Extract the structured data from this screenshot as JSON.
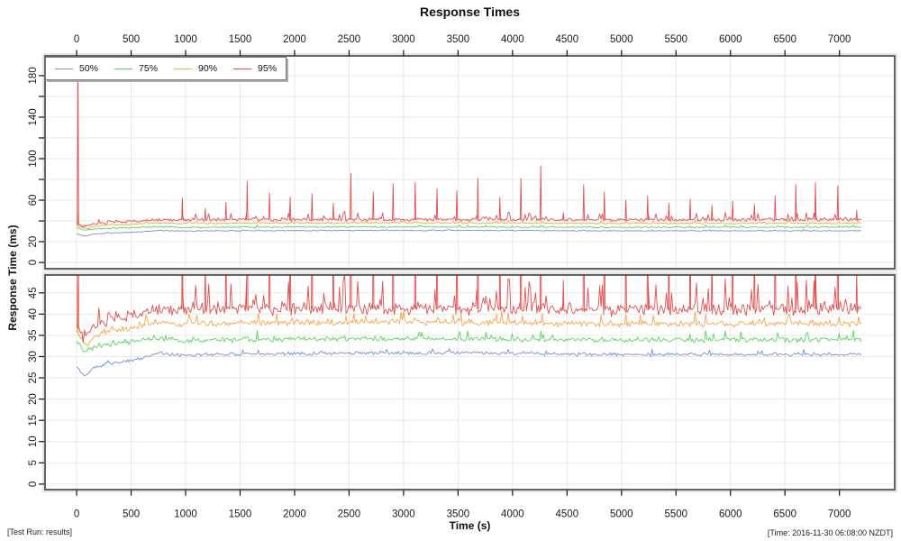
{
  "chart_data": {
    "type": "line",
    "title": "Response Times",
    "xlabel": "Time (s)",
    "ylabel": "Response Time (ms)",
    "footer_left": "[Test Run: results]",
    "footer_right": "[Time: 2016-11-30 06:08:00 NZDT]",
    "legend_position": "top-left",
    "grid": true,
    "x_ticks": [
      0,
      500,
      1000,
      1500,
      2000,
      2500,
      3000,
      3500,
      4000,
      4500,
      5000,
      5500,
      6000,
      6500,
      7000
    ],
    "x_data_range": [
      0,
      7200
    ],
    "xlim": [
      -290,
      7507
    ],
    "panels": [
      {
        "name": "full-range",
        "ylim": [
          -6,
          199
        ],
        "ytick_step": 20,
        "ytick_max": 180,
        "ylabels": [
          0,
          20,
          60,
          100,
          140,
          180
        ]
      },
      {
        "name": "zoomed",
        "ylim": [
          -1.3,
          49.2
        ],
        "ytick_step": 5,
        "ytick_max": 45,
        "ylabels": [
          0,
          5,
          10,
          15,
          20,
          25,
          30,
          35,
          40,
          45
        ]
      }
    ],
    "series": [
      {
        "name": "50%",
        "color": "#7b8cd8",
        "noise": 0.6,
        "seed": 11,
        "burst": [
          0.05,
          1.2
        ],
        "keypoints": [
          [
            0,
            27.6
          ],
          [
            70,
            25.4
          ],
          [
            150,
            27.2
          ],
          [
            300,
            28.4
          ],
          [
            450,
            28.9
          ],
          [
            600,
            29.6
          ],
          [
            760,
            31.0
          ],
          [
            900,
            30.3
          ],
          [
            1100,
            30.5
          ],
          [
            2400,
            30.8
          ],
          [
            3600,
            30.9
          ],
          [
            4800,
            30.5
          ],
          [
            7200,
            30.5
          ]
        ]
      },
      {
        "name": "75%",
        "color": "#55d65a",
        "noise": 0.9,
        "seed": 22,
        "burst": [
          0.07,
          1.8
        ],
        "keypoints": [
          [
            0,
            33.8
          ],
          [
            75,
            31.3
          ],
          [
            180,
            32.6
          ],
          [
            350,
            33.1
          ],
          [
            550,
            33.6
          ],
          [
            740,
            34.5
          ],
          [
            950,
            33.7
          ],
          [
            1500,
            34.0
          ],
          [
            3000,
            34.2
          ],
          [
            4800,
            33.9
          ],
          [
            7200,
            34.0
          ]
        ]
      },
      {
        "name": "90%",
        "color": "#f5a54c",
        "noise": 1.1,
        "seed": 33,
        "burst": [
          0.09,
          2.6
        ],
        "spikes": [
          [
            10,
            47
          ]
        ],
        "keypoints": [
          [
            0,
            35.8
          ],
          [
            80,
            32.6
          ],
          [
            200,
            35.0
          ],
          [
            400,
            36.4
          ],
          [
            600,
            37.2
          ],
          [
            780,
            38.2
          ],
          [
            950,
            37.6
          ],
          [
            1500,
            37.8
          ],
          [
            3000,
            38.2
          ],
          [
            4800,
            37.7
          ],
          [
            7200,
            37.8
          ]
        ]
      },
      {
        "name": "95%",
        "color": "#e04e4e",
        "noise": 2.2,
        "seed": 44,
        "burst": [
          0.14,
          6.5
        ],
        "spikes": [
          [
            12,
            195
          ],
          [
            970,
            62
          ],
          [
            1180,
            52
          ],
          [
            1370,
            58
          ],
          [
            1565,
            78
          ],
          [
            1770,
            67
          ],
          [
            1960,
            63
          ],
          [
            2160,
            66
          ],
          [
            2355,
            57
          ],
          [
            2516,
            86
          ],
          [
            2722,
            68
          ],
          [
            2904,
            76
          ],
          [
            3107,
            77
          ],
          [
            3307,
            71
          ],
          [
            3489,
            69
          ],
          [
            3682,
            81
          ],
          [
            3884,
            63
          ],
          [
            4077,
            81
          ],
          [
            4259,
            93
          ],
          [
            4466,
            48
          ],
          [
            4653,
            75
          ],
          [
            4843,
            68
          ],
          [
            5040,
            60
          ],
          [
            5240,
            64
          ],
          [
            5435,
            57
          ],
          [
            5630,
            61
          ],
          [
            5830,
            55
          ],
          [
            6020,
            59
          ],
          [
            6220,
            56
          ],
          [
            6410,
            64
          ],
          [
            6600,
            75
          ],
          [
            6779,
            77
          ],
          [
            6985,
            74
          ],
          [
            7158,
            50
          ]
        ],
        "keypoints": [
          [
            0,
            37.5
          ],
          [
            60,
            34.6
          ],
          [
            150,
            36.8
          ],
          [
            300,
            38.6
          ],
          [
            500,
            39.8
          ],
          [
            700,
            40.7
          ],
          [
            900,
            41.2
          ],
          [
            2400,
            41.4
          ],
          [
            4800,
            41.0
          ],
          [
            7200,
            41.2
          ]
        ]
      }
    ]
  }
}
